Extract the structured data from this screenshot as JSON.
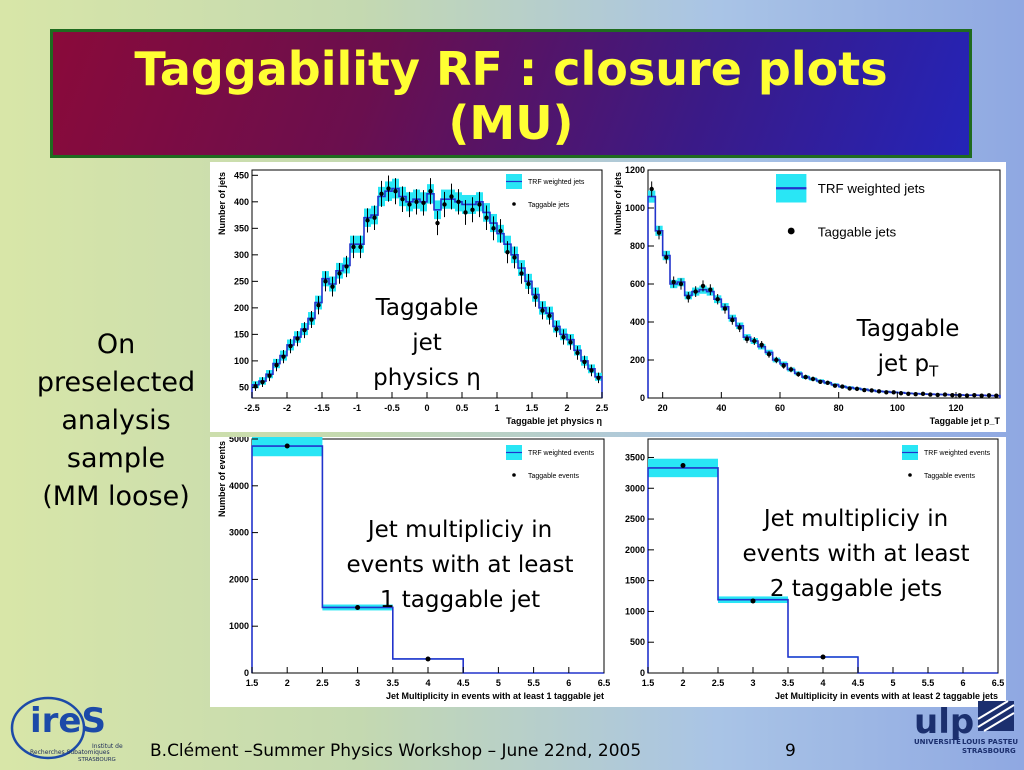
{
  "slide": {
    "title_line1": "Taggability RF : closure plots",
    "title_line2": "(MU)",
    "side_note": [
      "On",
      "preselected",
      "analysis",
      "sample",
      "(MM loose)"
    ],
    "footer": "B.Clément –Summer Physics Workshop – June 22nd, 2005",
    "page_number": "9"
  },
  "annotations": {
    "eta": [
      "Taggable",
      "jet",
      "physics η"
    ],
    "pt_line1": "Taggable",
    "pt_line2_main": "jet p",
    "pt_line2_sub": "T",
    "mult1": [
      "Jet multipliciy in",
      "events with at least",
      "1 taggable jet"
    ],
    "mult2": [
      "Jet multipliciy in",
      "events with at least",
      "2 taggable jets"
    ]
  },
  "logos": {
    "ires": {
      "main": "ireS",
      "line1": "Institut de",
      "line2": "Recherches Subatomiques",
      "line3": "STRASBOURG"
    },
    "ulp": {
      "main": "ulp",
      "line1": "UNIVERSITÉ",
      "line2": "LOUIS PASTEUR",
      "line3": "STRASBOURG"
    }
  },
  "colors": {
    "band": "#29e6f5",
    "line": "#2233cc",
    "marker": "#000000",
    "title_text": "#ffff33"
  },
  "chart_data": [
    {
      "type": "histogram",
      "id": "eta",
      "xlabel": "Taggable jet physics η",
      "ylabel": "Number of jets",
      "xlim": [
        -2.5,
        2.5
      ],
      "ylim": [
        30,
        460
      ],
      "xticks": [
        -2.5,
        -2,
        -1.5,
        -1,
        -0.5,
        0,
        0.5,
        1,
        1.5,
        2,
        2.5
      ],
      "yticks": [
        50,
        100,
        150,
        200,
        250,
        300,
        350,
        400,
        450
      ],
      "legend": [
        "TRF weighted jets",
        "Taggable jets"
      ],
      "bin_edges_start": -2.5,
      "bin_width": 0.1,
      "trf_weighted": [
        55,
        62,
        75,
        95,
        110,
        130,
        145,
        160,
        180,
        210,
        255,
        245,
        270,
        280,
        320,
        320,
        370,
        375,
        410,
        420,
        425,
        410,
        400,
        405,
        400,
        415,
        385,
        405,
        405,
        400,
        395,
        395,
        400,
        380,
        360,
        340,
        320,
        300,
        275,
        250,
        225,
        200,
        190,
        165,
        150,
        140,
        120,
        100,
        85,
        70
      ],
      "taggable": [
        52,
        60,
        72,
        92,
        108,
        128,
        142,
        158,
        178,
        205,
        250,
        240,
        265,
        278,
        315,
        315,
        365,
        370,
        415,
        425,
        420,
        405,
        395,
        400,
        398,
        420,
        360,
        395,
        410,
        400,
        380,
        385,
        395,
        370,
        350,
        345,
        305,
        295,
        265,
        245,
        220,
        195,
        185,
        160,
        145,
        135,
        115,
        98,
        82,
        68
      ]
    },
    {
      "type": "histogram",
      "id": "pt",
      "xlabel": "Taggable jet p_T",
      "ylabel": "Number of jets",
      "xlim": [
        15,
        135
      ],
      "ylim": [
        0,
        1200
      ],
      "xticks": [
        20,
        40,
        60,
        80,
        100,
        120
      ],
      "yticks": [
        0,
        200,
        400,
        600,
        800,
        1000,
        1200
      ],
      "legend": [
        "TRF weighted jets",
        "Taggable jets"
      ],
      "bin_edges_start": 15,
      "bin_width": 2.5,
      "trf_weighted": [
        1060,
        880,
        750,
        600,
        610,
        540,
        560,
        570,
        560,
        520,
        480,
        420,
        380,
        320,
        300,
        270,
        240,
        200,
        180,
        150,
        130,
        110,
        100,
        90,
        80,
        70,
        60,
        55,
        50,
        45,
        40,
        35,
        33,
        30,
        28,
        25,
        23,
        21,
        20,
        19,
        18,
        17,
        16,
        15,
        15,
        14,
        13,
        12
      ],
      "taggable": [
        1100,
        870,
        740,
        610,
        600,
        530,
        560,
        590,
        570,
        520,
        470,
        410,
        370,
        310,
        300,
        280,
        230,
        200,
        170,
        150,
        125,
        110,
        100,
        85,
        80,
        65,
        60,
        50,
        48,
        42,
        40,
        35,
        30,
        30,
        25,
        22,
        20,
        22,
        18,
        16,
        18,
        15,
        14,
        13,
        15,
        12,
        14,
        12
      ]
    },
    {
      "type": "histogram",
      "id": "mult1",
      "xlabel": "Jet Multiplicity in events with at least 1 taggable jet",
      "ylabel": "Number of events",
      "xlim": [
        1.5,
        6.5
      ],
      "ylim": [
        0,
        5000
      ],
      "xticks": [
        1.5,
        2,
        2.5,
        3,
        3.5,
        4,
        4.5,
        5,
        5.5,
        6,
        6.5
      ],
      "yticks": [
        0,
        1000,
        2000,
        3000,
        4000,
        5000
      ],
      "legend": [
        "TRF weighted events",
        "Taggable events"
      ],
      "bin_edges": [
        1.5,
        2.5,
        3.5,
        4.5,
        5.5,
        6.5
      ],
      "trf_weighted": [
        4850,
        1400,
        300,
        0,
        0
      ],
      "taggable": [
        4850,
        1400,
        300,
        0,
        0
      ]
    },
    {
      "type": "histogram",
      "id": "mult2",
      "xlabel": "Jet Multiplicity in events with at least 2 taggable jets",
      "ylabel": "",
      "xlim": [
        1.5,
        6.5
      ],
      "ylim": [
        0,
        3800
      ],
      "xticks": [
        1.5,
        2,
        2.5,
        3,
        3.5,
        4,
        4.5,
        5,
        5.5,
        6,
        6.5
      ],
      "yticks": [
        0,
        500,
        1000,
        1500,
        2000,
        2500,
        3000,
        3500
      ],
      "legend": [
        "TRF weighted events",
        "Taggable events"
      ],
      "bin_edges": [
        1.5,
        2.5,
        3.5,
        4.5,
        5.5,
        6.5
      ],
      "trf_weighted": [
        3330,
        1190,
        260,
        0,
        0
      ],
      "taggable": [
        3370,
        1170,
        260,
        0,
        0
      ]
    }
  ]
}
